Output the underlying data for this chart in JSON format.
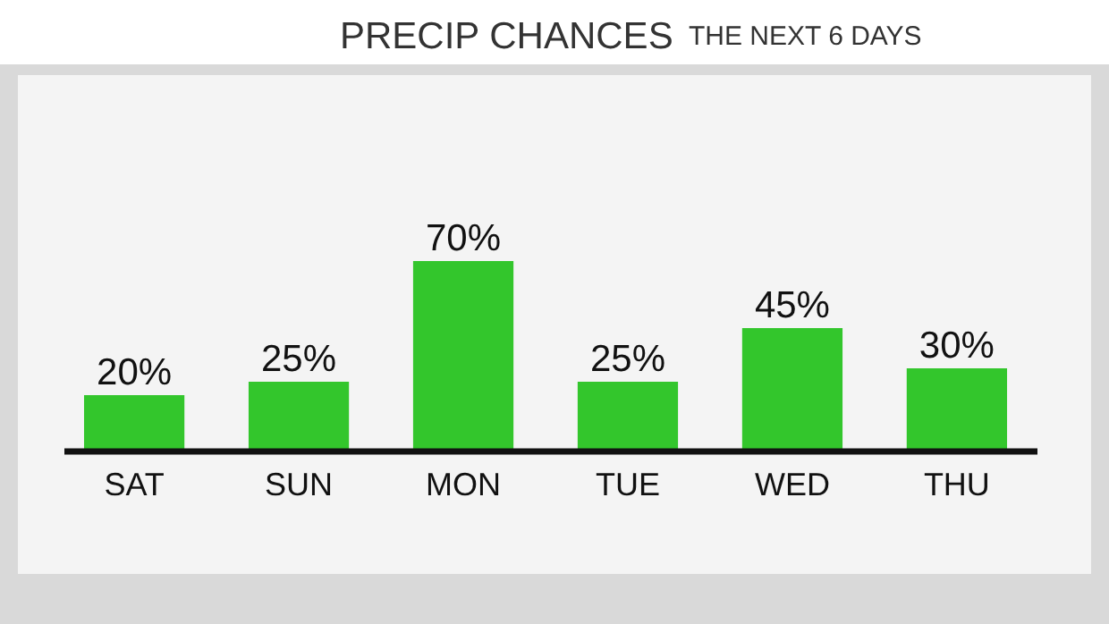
{
  "chart_data": {
    "type": "bar",
    "title": "PRECIP CHANCES",
    "subtitle": "THE NEXT 6 DAYS",
    "categories": [
      "SAT",
      "SUN",
      "MON",
      "TUE",
      "WED",
      "THU"
    ],
    "values": [
      20,
      25,
      70,
      25,
      45,
      30
    ],
    "value_labels": [
      "20%",
      "25%",
      "70%",
      "25%",
      "45%",
      "30%"
    ],
    "color": "#33c62c"
  }
}
